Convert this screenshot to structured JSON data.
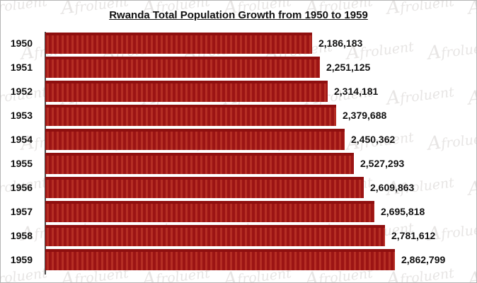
{
  "title": "Rwanda Total Population Growth from 1950 to 1959",
  "watermark": {
    "text": "Afroluent",
    "color": "rgba(175,170,164,0.30)"
  },
  "chart_data": {
    "type": "bar",
    "orientation": "horizontal",
    "title": "Rwanda Total Population Growth from 1950 to 1959",
    "xlabel": "",
    "ylabel": "",
    "categories": [
      "1950",
      "1951",
      "1952",
      "1953",
      "1954",
      "1955",
      "1956",
      "1957",
      "1958",
      "1959"
    ],
    "values": [
      2186183,
      2251125,
      2314181,
      2379688,
      2450362,
      2527293,
      2609863,
      2695818,
      2781612,
      2862799
    ],
    "value_labels": [
      "2,186,183",
      "2,251,125",
      "2,314,181",
      "2,379,688",
      "2,450,362",
      "2,527,293",
      "2,609,863",
      "2,695,818",
      "2,781,612",
      "2,862,799"
    ],
    "xlim": [
      0,
      2862799
    ],
    "grid": false,
    "legend": false,
    "data_labels": true,
    "colors": {
      "bar_base": "#9c1414",
      "bar_dark": "#8e0f0f",
      "bar_stripe": "#b52e24",
      "label_text": "#111111",
      "axis_line": "#4a4a4a"
    }
  }
}
